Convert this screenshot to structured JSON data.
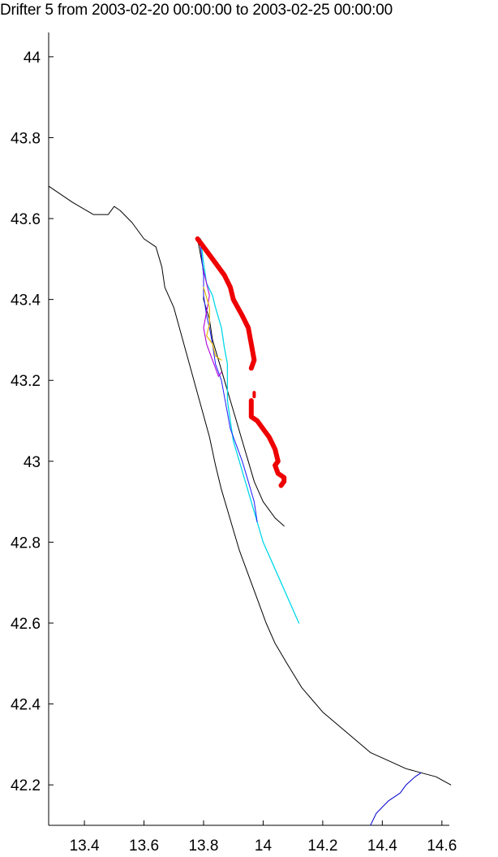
{
  "chart_data": {
    "type": "line",
    "title": "Drifter 5 from 2003-02-20 00:00:00 to 2003-02-25 00:00:00",
    "xlabel": "",
    "ylabel": "",
    "xlim": [
      13.28,
      14.625
    ],
    "ylim": [
      42.1,
      44.06
    ],
    "grid": false,
    "x_ticks": [
      {
        "value": 13.4,
        "label": "13.4"
      },
      {
        "value": 13.6,
        "label": "13.6"
      },
      {
        "value": 13.8,
        "label": "13.8"
      },
      {
        "value": 14.0,
        "label": "14"
      },
      {
        "value": 14.2,
        "label": "14.2"
      },
      {
        "value": 14.4,
        "label": "14.4"
      },
      {
        "value": 14.6,
        "label": "14.6"
      }
    ],
    "y_ticks": [
      {
        "value": 42.2,
        "label": "42.2"
      },
      {
        "value": 42.4,
        "label": "42.4"
      },
      {
        "value": 42.6,
        "label": "42.6"
      },
      {
        "value": 42.8,
        "label": "42.8"
      },
      {
        "value": 43.0,
        "label": "43"
      },
      {
        "value": 43.2,
        "label": "43.2"
      },
      {
        "value": 43.4,
        "label": "43.4"
      },
      {
        "value": 43.6,
        "label": "43.6"
      },
      {
        "value": 43.8,
        "label": "43.8"
      },
      {
        "value": 44.0,
        "label": "44"
      }
    ],
    "series": [
      {
        "name": "coastline",
        "color": "#000000",
        "width": 1,
        "x": [
          13.28,
          13.36,
          13.43,
          13.48,
          13.5,
          13.52,
          13.56,
          13.6,
          13.64,
          13.66,
          13.67,
          13.7,
          13.73,
          13.76,
          13.79,
          13.82,
          13.84,
          13.86,
          13.88,
          13.9,
          13.92,
          13.95,
          13.98,
          14.01,
          14.04,
          14.08,
          14.13,
          14.2,
          14.28,
          14.36,
          14.42,
          14.48,
          14.53,
          14.58,
          14.63
        ],
        "y": [
          43.68,
          43.64,
          43.61,
          43.61,
          43.63,
          43.62,
          43.59,
          43.55,
          43.53,
          43.48,
          43.43,
          43.38,
          43.3,
          43.22,
          43.14,
          43.06,
          42.99,
          42.93,
          42.88,
          42.83,
          42.78,
          42.72,
          42.66,
          42.6,
          42.55,
          42.5,
          42.44,
          42.38,
          42.33,
          42.28,
          42.26,
          42.24,
          42.23,
          42.22,
          42.2
        ]
      },
      {
        "name": "river",
        "color": "#0000cc",
        "width": 1,
        "x": [
          14.36,
          14.38,
          14.42,
          14.46,
          14.48,
          14.51,
          14.53
        ],
        "y": [
          42.1,
          42.13,
          42.16,
          42.18,
          42.2,
          42.22,
          42.23
        ]
      },
      {
        "name": "drifter-black",
        "color": "#000000",
        "width": 1,
        "x": [
          13.78,
          13.8,
          13.8,
          13.82,
          13.83,
          13.85,
          13.87,
          13.89,
          13.91,
          13.93,
          13.95,
          13.97,
          14.0,
          14.04,
          14.07
        ],
        "y": [
          43.55,
          43.47,
          43.4,
          43.35,
          43.3,
          43.25,
          43.2,
          43.15,
          43.1,
          43.05,
          43.0,
          42.95,
          42.9,
          42.86,
          42.84
        ]
      },
      {
        "name": "drifter-cyan",
        "color": "#00d8e8",
        "width": 1.3,
        "x": [
          13.79,
          13.8,
          13.81,
          13.83,
          13.84,
          13.86,
          13.87,
          13.88,
          13.88,
          13.88,
          13.89,
          13.9,
          13.92,
          13.94,
          13.96,
          13.98,
          14.0,
          14.03,
          14.06,
          14.09,
          14.12
        ],
        "y": [
          43.55,
          43.49,
          43.44,
          43.41,
          43.38,
          43.33,
          43.28,
          43.24,
          43.2,
          43.15,
          43.1,
          43.05,
          43.0,
          42.95,
          42.9,
          42.85,
          42.8,
          42.75,
          42.7,
          42.65,
          42.6
        ]
      },
      {
        "name": "drifter-blue",
        "color": "#1a1aff",
        "width": 1,
        "x": [
          13.79,
          13.8,
          13.8,
          13.81,
          13.82,
          13.83,
          13.84,
          13.86,
          13.87,
          13.88,
          13.89,
          13.91,
          13.93,
          13.95,
          13.97,
          13.98
        ],
        "y": [
          43.53,
          43.46,
          43.41,
          43.36,
          43.33,
          43.29,
          43.24,
          43.2,
          43.16,
          43.12,
          43.08,
          43.04,
          43.0,
          42.95,
          42.9,
          42.85
        ]
      },
      {
        "name": "drifter-magenta",
        "color": "#b000d8",
        "width": 1.1,
        "x": [
          13.8,
          13.82,
          13.81,
          13.8,
          13.81,
          13.82,
          13.83,
          13.84,
          13.85,
          13.86
        ],
        "y": [
          43.47,
          43.41,
          43.37,
          43.33,
          43.29,
          43.27,
          43.25,
          43.23,
          43.21,
          43.22
        ]
      },
      {
        "name": "drifter-yellow",
        "color": "#e6b800",
        "width": 1.2,
        "x": [
          13.8,
          13.82,
          13.82,
          13.81,
          13.83,
          13.84,
          13.86
        ],
        "y": [
          43.43,
          43.38,
          43.34,
          43.31,
          43.29,
          43.26,
          43.25
        ]
      },
      {
        "name": "drifter-red",
        "color": "#ee0000",
        "width": 6,
        "x": [
          13.78,
          13.81,
          13.84,
          13.87,
          13.89,
          13.9,
          13.93,
          13.95,
          13.96,
          13.97,
          13.96
        ],
        "y": [
          43.55,
          43.52,
          43.49,
          43.46,
          43.43,
          43.4,
          43.36,
          43.33,
          43.29,
          43.25,
          43.23
        ]
      },
      {
        "name": "drifter-red-dot",
        "color": "#ee0000",
        "width": 4,
        "x": [
          13.97,
          13.97
        ],
        "y": [
          43.17,
          43.16
        ]
      },
      {
        "name": "drifter-red-lower",
        "color": "#ee0000",
        "width": 6,
        "x": [
          13.96,
          13.96,
          13.98,
          14.0,
          14.02,
          14.04,
          14.05,
          14.04,
          14.05,
          14.07,
          14.07,
          14.06
        ],
        "y": [
          43.15,
          43.11,
          43.1,
          43.08,
          43.06,
          43.03,
          43.0,
          42.99,
          42.97,
          42.96,
          42.95,
          42.94
        ]
      }
    ]
  }
}
